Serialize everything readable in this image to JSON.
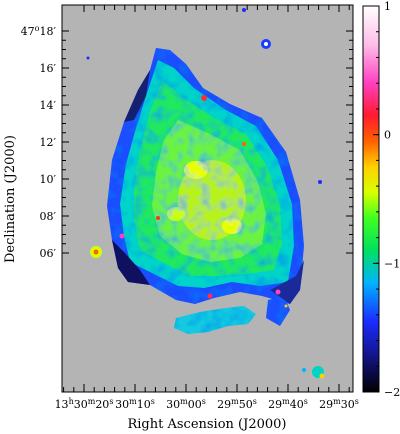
{
  "figure": {
    "xlabel": "Right Ascension (J2000)",
    "ylabel": "Declination (J2000)",
    "dec_ticks": [
      {
        "deg": "47",
        "min": "18",
        "sec": "",
        "value_arcmin": 18
      },
      {
        "deg": "",
        "min": "16",
        "sec": "",
        "value_arcmin": 16
      },
      {
        "deg": "",
        "min": "14",
        "sec": "",
        "value_arcmin": 14
      },
      {
        "deg": "",
        "min": "12",
        "sec": "",
        "value_arcmin": 12
      },
      {
        "deg": "",
        "min": "10",
        "sec": "",
        "value_arcmin": 10
      },
      {
        "deg": "",
        "min": "08",
        "sec": "",
        "value_arcmin": 8
      },
      {
        "deg": "",
        "min": "06",
        "sec": "",
        "value_arcmin": 6
      }
    ],
    "ra_ticks": [
      {
        "h": "13",
        "m": "30",
        "s": "20"
      },
      {
        "h": "",
        "m": "30",
        "s": "10"
      },
      {
        "h": "",
        "m": "30",
        "s": "00"
      },
      {
        "h": "",
        "m": "29",
        "s": "50"
      },
      {
        "h": "",
        "m": "29",
        "s": "40"
      },
      {
        "h": "",
        "m": "29",
        "s": "30"
      }
    ],
    "colorbar": {
      "min": -2,
      "max": 1,
      "tick_labels": [
        "1",
        "0",
        "−1",
        "−2"
      ],
      "tick_values": [
        1,
        0,
        -1,
        -2
      ],
      "colormap_stops": [
        {
          "v": -2.0,
          "c": "#000000"
        },
        {
          "v": -1.75,
          "c": "#12127a"
        },
        {
          "v": -1.45,
          "c": "#1a2cff"
        },
        {
          "v": -1.15,
          "c": "#00b4ff"
        },
        {
          "v": -0.9,
          "c": "#00e060"
        },
        {
          "v": -0.65,
          "c": "#40ff20"
        },
        {
          "v": -0.45,
          "c": "#d8ff00"
        },
        {
          "v": -0.25,
          "c": "#ffd000"
        },
        {
          "v": -0.05,
          "c": "#ff6000"
        },
        {
          "v": 0.15,
          "c": "#ff1a30"
        },
        {
          "v": 0.4,
          "c": "#ff40c0"
        },
        {
          "v": 0.7,
          "c": "#ffbde8"
        },
        {
          "v": 1.0,
          "c": "#ffffff"
        }
      ]
    },
    "background_color": "#b4b4b4"
  }
}
